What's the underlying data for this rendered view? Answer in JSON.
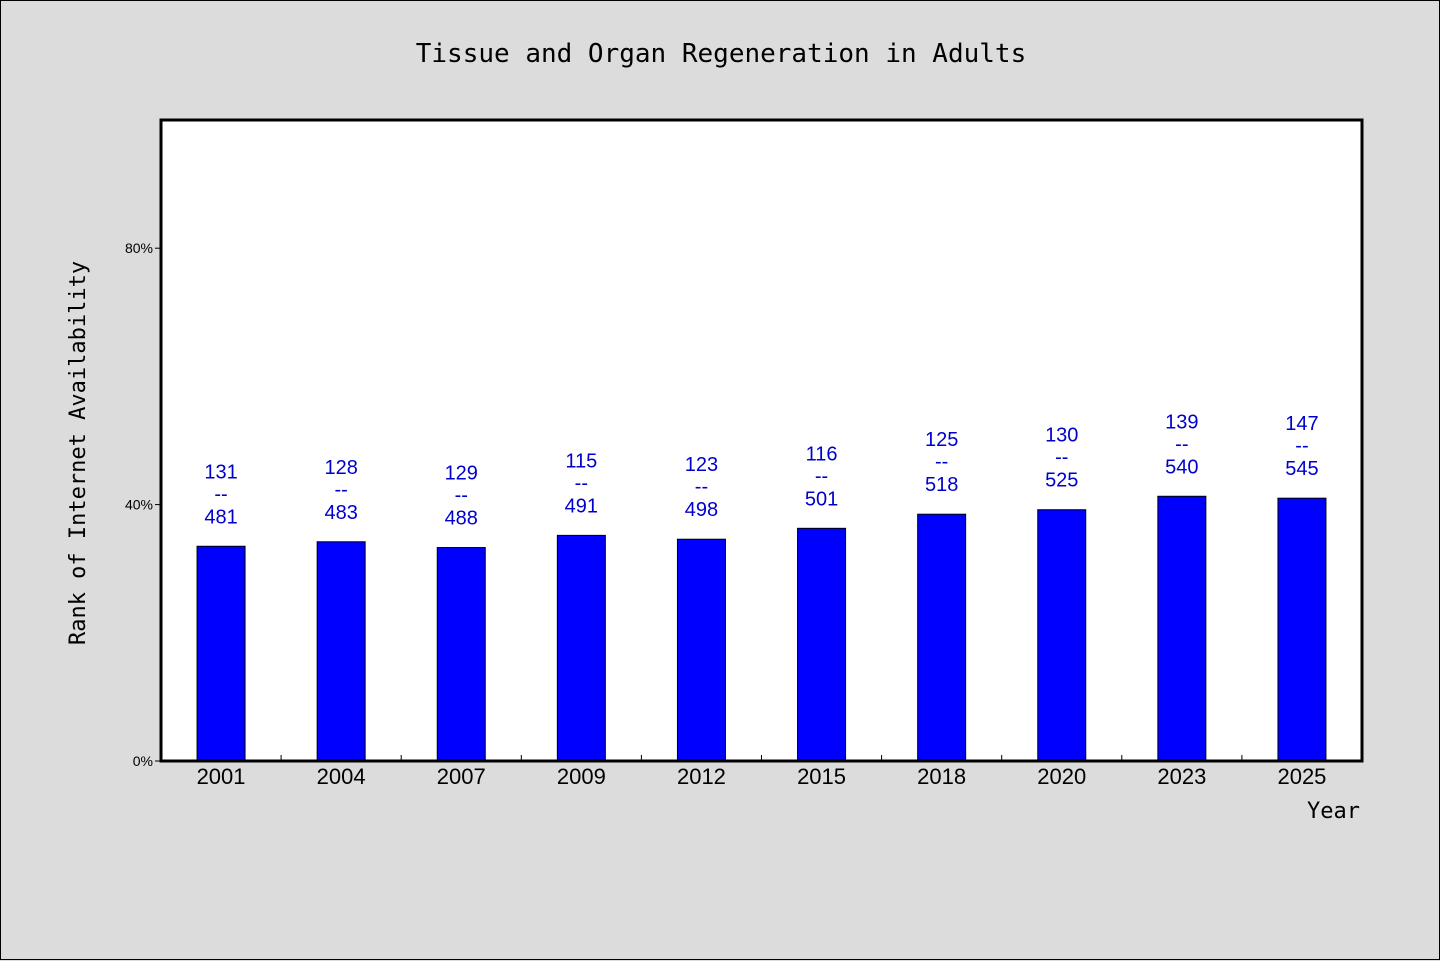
{
  "chart_data": {
    "type": "bar",
    "title": "Tissue and Organ Regeneration in Adults",
    "xlabel": "Year",
    "ylabel": "Rank of Internet Availability",
    "ylim": [
      0,
      1
    ],
    "yticks": [
      "0%",
      "40%",
      "80%"
    ],
    "ytick_values": [
      0,
      0.4,
      0.8
    ],
    "categories": [
      "2001",
      "2004",
      "2007",
      "2009",
      "2012",
      "2015",
      "2018",
      "2020",
      "2023",
      "2025"
    ],
    "values": [
      0.335,
      0.342,
      0.333,
      0.352,
      0.346,
      0.363,
      0.385,
      0.392,
      0.413,
      0.41
    ],
    "label_top": [
      "131",
      "128",
      "129",
      "115",
      "123",
      "116",
      "125",
      "130",
      "139",
      "147"
    ],
    "label_sep": "--",
    "label_bottom": [
      "481",
      "483",
      "488",
      "491",
      "498",
      "501",
      "518",
      "525",
      "540",
      "545"
    ],
    "bar_color": "#0000ff",
    "label_color": "#0000cc",
    "grid": false,
    "legend": "none"
  }
}
